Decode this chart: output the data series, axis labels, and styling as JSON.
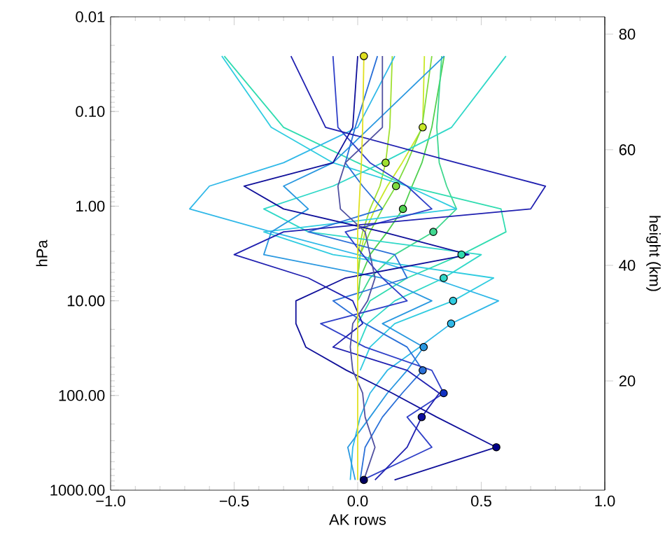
{
  "chart_data": {
    "type": "line",
    "xlabel": "AK rows",
    "ylabel": "hPa",
    "y2label": "height (km)",
    "xlim": [
      -1.0,
      1.0
    ],
    "xticks": [
      {
        "value": -1.0,
        "label": "−1.0"
      },
      {
        "value": -0.5,
        "label": "−0.5"
      },
      {
        "value": 0.0,
        "label": "0.0"
      },
      {
        "value": 0.5,
        "label": "0.5"
      },
      {
        "value": 1.0,
        "label": "1.0"
      }
    ],
    "ylim": [
      1000,
      0.01
    ],
    "log": "y",
    "yticks": [
      {
        "value": 0.01,
        "label": "0.01"
      },
      {
        "value": 0.1,
        "label": "0.10"
      },
      {
        "value": 1,
        "label": "1.00"
      },
      {
        "value": 10,
        "label": "10.00"
      },
      {
        "value": 100,
        "label": "100.00"
      },
      {
        "value": 1000,
        "label": "1000.00"
      }
    ],
    "y2lim": [
      1.1,
      83.0
    ],
    "y2ticks": [
      20,
      40,
      60,
      80
    ],
    "marker": "none",
    "line_style": "solid",
    "grid": false,
    "series": [
      {
        "color": "#c8e828",
        "x": [
          0.27,
          0.263,
          0.18,
          0.12,
          0.07,
          0.03,
          0.01,
          0,
          null,
          null,
          null,
          null,
          null,
          null,
          null,
          null
        ],
        "values": [
          0.026,
          0.147,
          0.348,
          0.614,
          1.07,
          1.87,
          3.25,
          5.74,
          null,
          null,
          null,
          null,
          null,
          null,
          null,
          null
        ]
      },
      {
        "color": "#a0e030",
        "x": [
          0.14,
          0.13,
          0.113,
          0.09,
          0.05,
          0.02,
          0.0,
          null,
          null,
          null,
          null,
          null,
          null,
          null,
          null,
          null
        ],
        "values": [
          0.026,
          0.147,
          0.348,
          0.614,
          1.07,
          1.87,
          3.25,
          null,
          null,
          null,
          null,
          null,
          null,
          null,
          null,
          null
        ]
      },
      {
        "color": "#80dc40",
        "x": [
          0.3,
          0.26,
          0.2,
          0.155,
          0.1,
          0.05,
          0.01,
          0,
          null,
          null,
          null,
          null,
          null,
          null,
          null,
          null
        ],
        "values": [
          0.026,
          0.147,
          0.348,
          0.614,
          1.07,
          1.87,
          3.25,
          5.74,
          null,
          null,
          null,
          null,
          null,
          null,
          null,
          null
        ]
      },
      {
        "color": "#50d050",
        "x": [
          0.35,
          0.3,
          0.26,
          0.22,
          0.183,
          0.12,
          0.05,
          0.01,
          0,
          null,
          null,
          null,
          null,
          null,
          null,
          null
        ],
        "values": [
          0.026,
          0.147,
          0.348,
          0.614,
          1.07,
          1.87,
          3.25,
          5.74,
          10.0,
          null,
          null,
          null,
          null,
          null,
          null,
          null
        ]
      },
      {
        "color": "#40d890",
        "x": [
          0.34,
          0.32,
          0.33,
          0.36,
          0.4,
          0.306,
          0.15,
          0.05,
          0.0,
          null,
          null,
          null,
          null,
          null,
          null,
          null
        ],
        "values": [
          0.026,
          0.147,
          0.348,
          0.614,
          1.07,
          1.87,
          3.25,
          5.74,
          10.0,
          null,
          null,
          null,
          null,
          null,
          null,
          null
        ]
      },
      {
        "color": "#30dcb0",
        "x": [
          -0.54,
          -0.3,
          0.0,
          0.2,
          0.58,
          0.6,
          0.42,
          0.2,
          0.05,
          0,
          null,
          null,
          null,
          null,
          null,
          null
        ],
        "values": [
          0.026,
          0.147,
          0.348,
          0.614,
          1.07,
          1.87,
          3.25,
          5.74,
          10.0,
          17.4,
          null,
          null,
          null,
          null,
          null,
          null
        ]
      },
      {
        "color": "#30d8c8",
        "x": [
          0.6,
          0.38,
          0.1,
          -0.1,
          -0.38,
          -0.2,
          0.5,
          0.348,
          0.15,
          0.04,
          0,
          null,
          null,
          null,
          null,
          null
        ],
        "values": [
          0.026,
          0.147,
          0.348,
          0.614,
          1.07,
          1.87,
          3.25,
          5.74,
          10.0,
          17.4,
          30.8,
          null,
          null,
          null,
          null,
          null
        ]
      },
      {
        "color": "#30cce0",
        "x": [
          -0.55,
          -0.35,
          -0.1,
          0.2,
          0.4,
          -0.38,
          -0.1,
          0.55,
          0.386,
          0.15,
          0.05,
          0.01,
          null,
          null,
          null,
          null
        ],
        "values": [
          0.026,
          0.147,
          0.348,
          0.614,
          1.07,
          1.87,
          3.25,
          5.74,
          10.0,
          17.4,
          30.8,
          54.2,
          null,
          null,
          null,
          null
        ]
      },
      {
        "color": "#30b8e8",
        "x": [
          0.15,
          0.0,
          -0.3,
          -0.6,
          -0.68,
          -0.35,
          0.0,
          0.3,
          0.57,
          0.378,
          0.25,
          0.12,
          0.05,
          0.01,
          -0.02,
          -0.03
        ],
        "values": [
          0.026,
          0.147,
          0.348,
          0.614,
          1.07,
          1.87,
          3.25,
          5.74,
          10.0,
          17.4,
          30.8,
          54.2,
          94.5,
          169,
          352,
          780
        ]
      },
      {
        "color": "#2a98e0",
        "x": [
          0.35,
          0.05,
          -0.1,
          -0.3,
          -0.2,
          -0.35,
          -0.38,
          0.1,
          0.3,
          0.1,
          0.267,
          0.2,
          0.12,
          0.05,
          -0.04,
          -0.01
        ],
        "values": [
          0.026,
          0.147,
          0.348,
          0.614,
          1.07,
          1.87,
          3.25,
          5.74,
          10.0,
          17.4,
          30.8,
          54.2,
          94.5,
          169,
          352,
          780
        ]
      },
      {
        "color": "#2a70d8",
        "x": [
          0.08,
          -0.01,
          -0.05,
          0.02,
          0.1,
          -0.2,
          0.15,
          0.2,
          -0.1,
          0.03,
          0.2,
          0.263,
          0.18,
          0.1,
          0.03,
          0.01
        ],
        "values": [
          0.026,
          0.147,
          0.348,
          0.614,
          1.07,
          1.87,
          3.25,
          5.74,
          10.0,
          17.4,
          30.8,
          54.2,
          94.5,
          169,
          352,
          780
        ]
      },
      {
        "color": "#3040c8",
        "x": [
          -0.1,
          -0.08,
          0.05,
          0.2,
          0.3,
          -0.05,
          0.02,
          0.1,
          0.2,
          -0.15,
          0.03,
          0.3,
          0.348,
          0.2,
          0.3,
          0.02
        ],
        "values": [
          0.026,
          0.147,
          0.348,
          0.614,
          1.07,
          1.87,
          3.25,
          5.74,
          10.0,
          17.4,
          30.8,
          54.2,
          94.5,
          169,
          352,
          780
        ]
      },
      {
        "color": "#2020b0",
        "x": [
          -0.27,
          -0.13,
          0.4,
          0.76,
          0.7,
          -0.3,
          -0.5,
          -0.2,
          -0.02,
          0.02,
          -0.1,
          0.2,
          0.33,
          0.259,
          0.2,
          0.07
        ],
        "values": [
          0.026,
          0.147,
          0.348,
          0.614,
          1.07,
          1.87,
          3.25,
          5.74,
          10.0,
          17.4,
          30.8,
          54.2,
          94.5,
          169,
          352,
          780
        ]
      },
      {
        "color": "#10109a",
        "x": [
          0.0,
          -0.02,
          -0.1,
          -0.46,
          -0.3,
          0.1,
          0.45,
          -0.05,
          -0.25,
          -0.25,
          -0.21,
          -0.045,
          0.14,
          0.32,
          0.561,
          0.149
        ],
        "values": [
          0.026,
          0.147,
          0.348,
          0.614,
          1.07,
          1.87,
          3.25,
          5.74,
          10.0,
          17.4,
          30.8,
          54.2,
          94.5,
          169,
          352,
          780
        ]
      },
      {
        "color": "#5050a0",
        "x": [
          0.1,
          0.1,
          -0.05,
          -0.08,
          -0.07,
          0.03,
          0.05,
          0.07,
          0.04,
          -0.02,
          -0.03,
          -0.02,
          0.02,
          0.03,
          0.07,
          0.025
        ],
        "values": [
          0.026,
          0.147,
          0.348,
          0.614,
          1.07,
          1.87,
          3.25,
          5.74,
          10.0,
          17.4,
          30.8,
          54.2,
          94.5,
          169,
          352,
          780
        ]
      },
      {
        "color": "#e0e020",
        "x": [
          0.025,
          0.02,
          0.015,
          0.01,
          0.005,
          0,
          0,
          0,
          0,
          0,
          0,
          0,
          0,
          0,
          0,
          0
        ],
        "values": [
          0.026,
          0.147,
          0.348,
          0.614,
          1.07,
          1.87,
          3.25,
          5.74,
          10.0,
          17.4,
          30.8,
          54.2,
          94.5,
          169,
          352,
          780
        ]
      },
      {
        "type": "scatter",
        "marker": "circle",
        "x": [
          0.025,
          0.263,
          0.113,
          0.155,
          0.183,
          0.306,
          0.42,
          0.348,
          0.386,
          0.378,
          0.267,
          0.263,
          0.348,
          0.259,
          0.561,
          0.025
        ],
        "values": [
          0.026,
          0.147,
          0.348,
          0.614,
          1.07,
          1.87,
          3.25,
          5.74,
          10.0,
          17.4,
          30.8,
          54.2,
          94.5,
          169,
          352,
          780
        ],
        "colors": [
          "#e0e020",
          "#c8e828",
          "#a0e030",
          "#80dc40",
          "#50d050",
          "#40d890",
          "#30dcb0",
          "#30d8c8",
          "#30cce0",
          "#30b8e8",
          "#2a98e0",
          "#2a70d8",
          "#1030c0",
          "#1010a0",
          "#000088",
          "#000060"
        ]
      }
    ]
  }
}
